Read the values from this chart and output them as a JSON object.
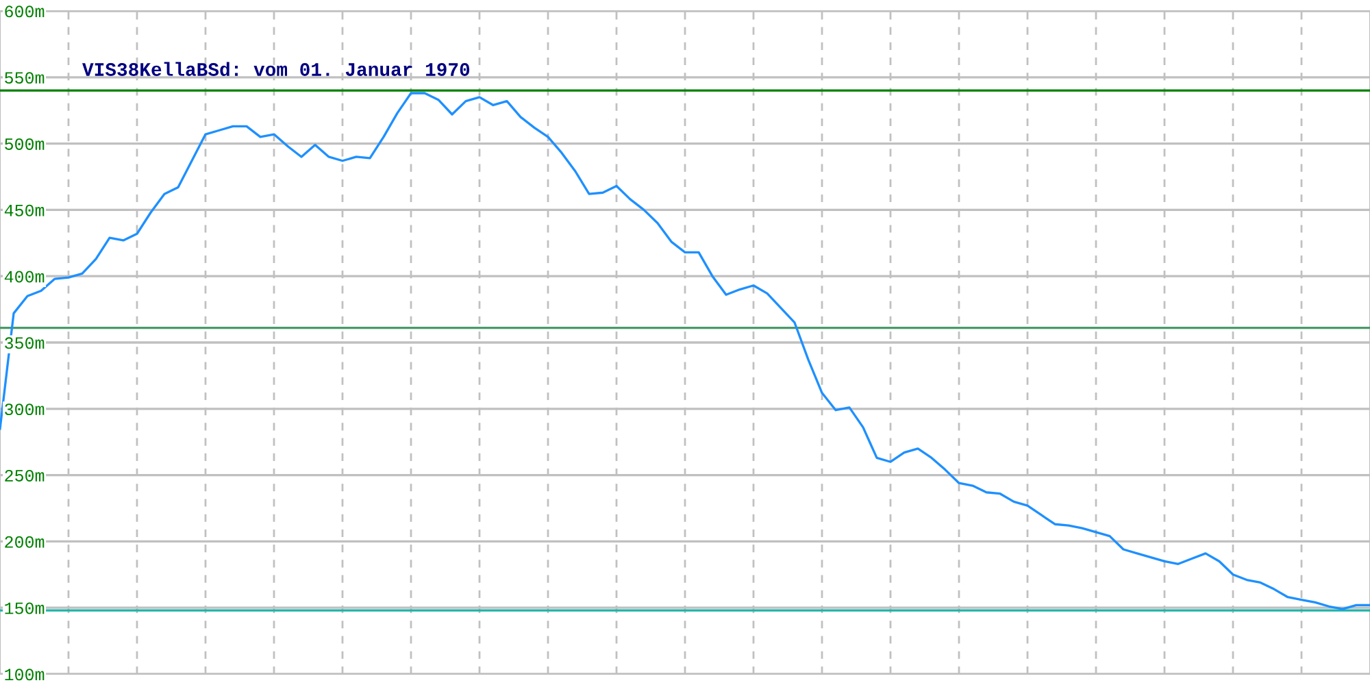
{
  "chart_data": {
    "type": "line",
    "title": "VIS38KellaBSd: vom 01. Januar 1970",
    "categories": [
      null,
      null,
      null,
      null,
      null,
      null,
      null,
      null,
      null,
      null,
      null,
      null,
      null,
      null,
      null,
      null,
      null,
      null,
      null,
      null,
      null,
      null,
      null,
      null,
      null,
      null,
      null,
      null,
      null,
      null,
      null,
      null,
      null,
      null,
      null,
      null,
      null,
      null,
      null,
      null,
      null,
      null,
      null,
      null,
      null,
      null,
      null,
      null,
      null,
      null,
      null,
      null,
      null,
      null,
      null,
      null,
      null,
      null,
      null,
      null,
      null,
      null,
      null,
      null,
      null,
      null,
      null,
      null,
      null,
      null,
      null,
      null,
      null,
      null,
      null,
      null,
      null,
      null,
      null,
      null,
      null,
      null,
      null,
      null,
      null,
      null,
      null,
      null,
      null,
      null,
      null,
      null,
      null,
      null,
      null,
      null,
      null,
      null,
      null,
      null,
      null
    ],
    "series": [
      {
        "color": "#1e90ff",
        "values": [
          285,
          372,
          385,
          389,
          398,
          399,
          402,
          413,
          429,
          427,
          432,
          448,
          462,
          467,
          487,
          507,
          510,
          513,
          513,
          505,
          507,
          498,
          490,
          499,
          490,
          487,
          490,
          489,
          505,
          523,
          538,
          538,
          533,
          522,
          532,
          535,
          529,
          532,
          520,
          512,
          505,
          493,
          479,
          462,
          463,
          468,
          458,
          450,
          440,
          426,
          418,
          418,
          400,
          386,
          390,
          393,
          387,
          376,
          365,
          337,
          312,
          299,
          301,
          286,
          263,
          260,
          267,
          270,
          263,
          254,
          244,
          242,
          237,
          236,
          230,
          227,
          220,
          213,
          212,
          210,
          207,
          204,
          194,
          191,
          188,
          185,
          183,
          187,
          191,
          185,
          175,
          171,
          169,
          164,
          158,
          156,
          154,
          151,
          149,
          152,
          152
        ]
      }
    ],
    "ylim": [
      100,
      600
    ],
    "yticks": [
      {
        "value": 100,
        "label": "100m"
      },
      {
        "value": 150,
        "label": "150m"
      },
      {
        "value": 200,
        "label": "200m"
      },
      {
        "value": 250,
        "label": "250m"
      },
      {
        "value": 300,
        "label": "300m"
      },
      {
        "value": 350,
        "label": "350m"
      },
      {
        "value": 400,
        "label": "400m"
      },
      {
        "value": 450,
        "label": "450m"
      },
      {
        "value": 500,
        "label": "500m"
      },
      {
        "value": 550,
        "label": "550m"
      },
      {
        "value": 600,
        "label": "600m"
      }
    ],
    "ref_lines": [
      {
        "axis": "y",
        "value": 540,
        "color": "#008000"
      },
      {
        "axis": "y",
        "value": 361,
        "color": "#4a9a6a"
      },
      {
        "axis": "y",
        "value": 148,
        "color": "#20b2aa"
      }
    ],
    "grid": true,
    "tick_labels": "y",
    "marker": "none",
    "line_style": "solid"
  }
}
